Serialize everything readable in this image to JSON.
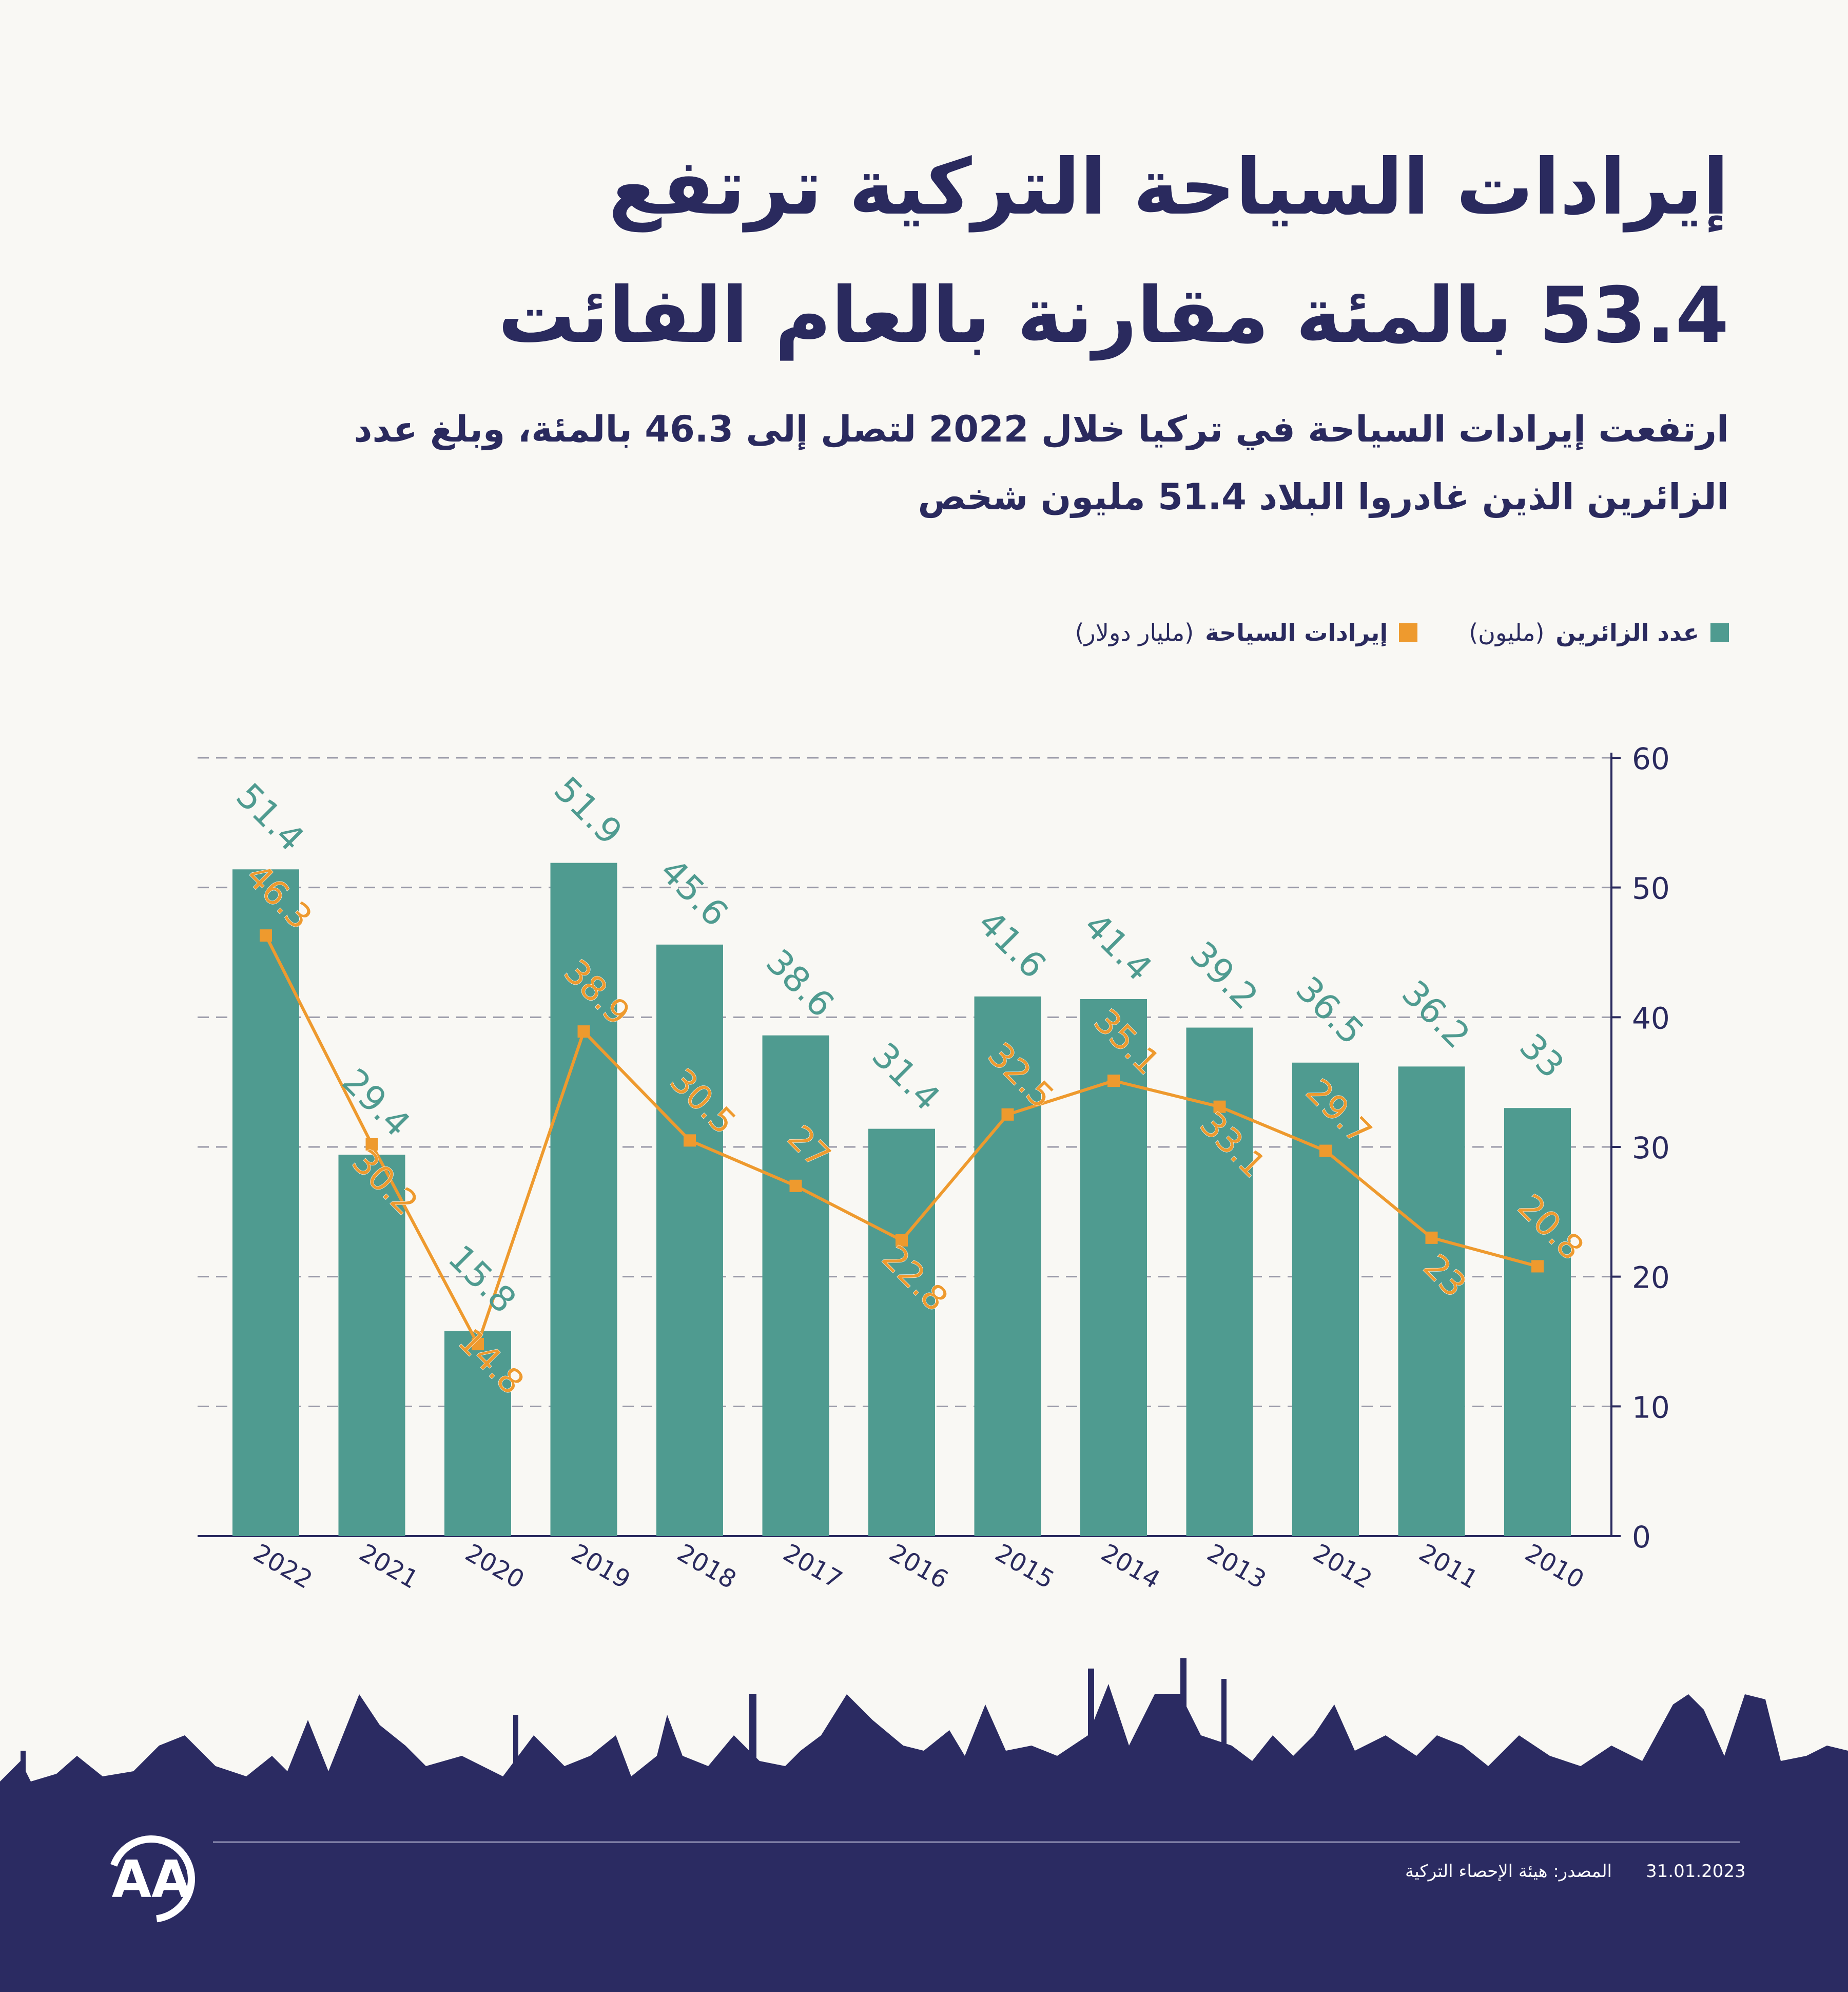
{
  "title": {
    "line1": "إيرادات السياحة التركية ترتفع",
    "line2": "53.4 بالمئة مقارنة بالعام الفائت"
  },
  "subtitle": {
    "line1": "ارتفعت إيرادات السياحة في تركيا خلال 2022 لتصل إلى 46.3 بالمئة، وبلغ عدد",
    "line2": "الزائرين الذين غادروا البلاد 51.4 مليون شخص"
  },
  "legend": {
    "visitors": {
      "name": "عدد الزائرين",
      "unit": "(مليون)"
    },
    "revenue": {
      "name": "إيرادات السياحة",
      "unit": "(مليار دولار)"
    }
  },
  "colors": {
    "bar": "#4f9b90",
    "line": "#ee9a2e",
    "navy": "#2b2b62",
    "text": "#2a2a5e"
  },
  "chart_data": {
    "type": "bar",
    "categories": [
      "2022",
      "2021",
      "2020",
      "2019",
      "2018",
      "2017",
      "2016",
      "2015",
      "2014",
      "2013",
      "2012",
      "2011",
      "2010"
    ],
    "series": [
      {
        "name": "عدد الزائرين",
        "type": "bar",
        "values": [
          51.4,
          29.4,
          15.8,
          51.9,
          45.6,
          38.6,
          31.4,
          41.6,
          41.4,
          39.2,
          36.5,
          36.2,
          33
        ]
      },
      {
        "name": "إيرادات السياحة",
        "type": "line",
        "values": [
          46.3,
          30.2,
          14.8,
          38.9,
          30.5,
          27,
          22.8,
          32.5,
          35.1,
          33.1,
          29.7,
          23,
          20.8
        ]
      }
    ],
    "y_ticks": [
      0,
      10,
      20,
      30,
      40,
      50,
      60
    ],
    "ylim": [
      0,
      60
    ],
    "grid": true,
    "y_axis_side": "right"
  },
  "footer": {
    "date": "31.01.2023",
    "source": "المصدر: هيئة الإحصاء التركية",
    "logo_text": "AA"
  }
}
